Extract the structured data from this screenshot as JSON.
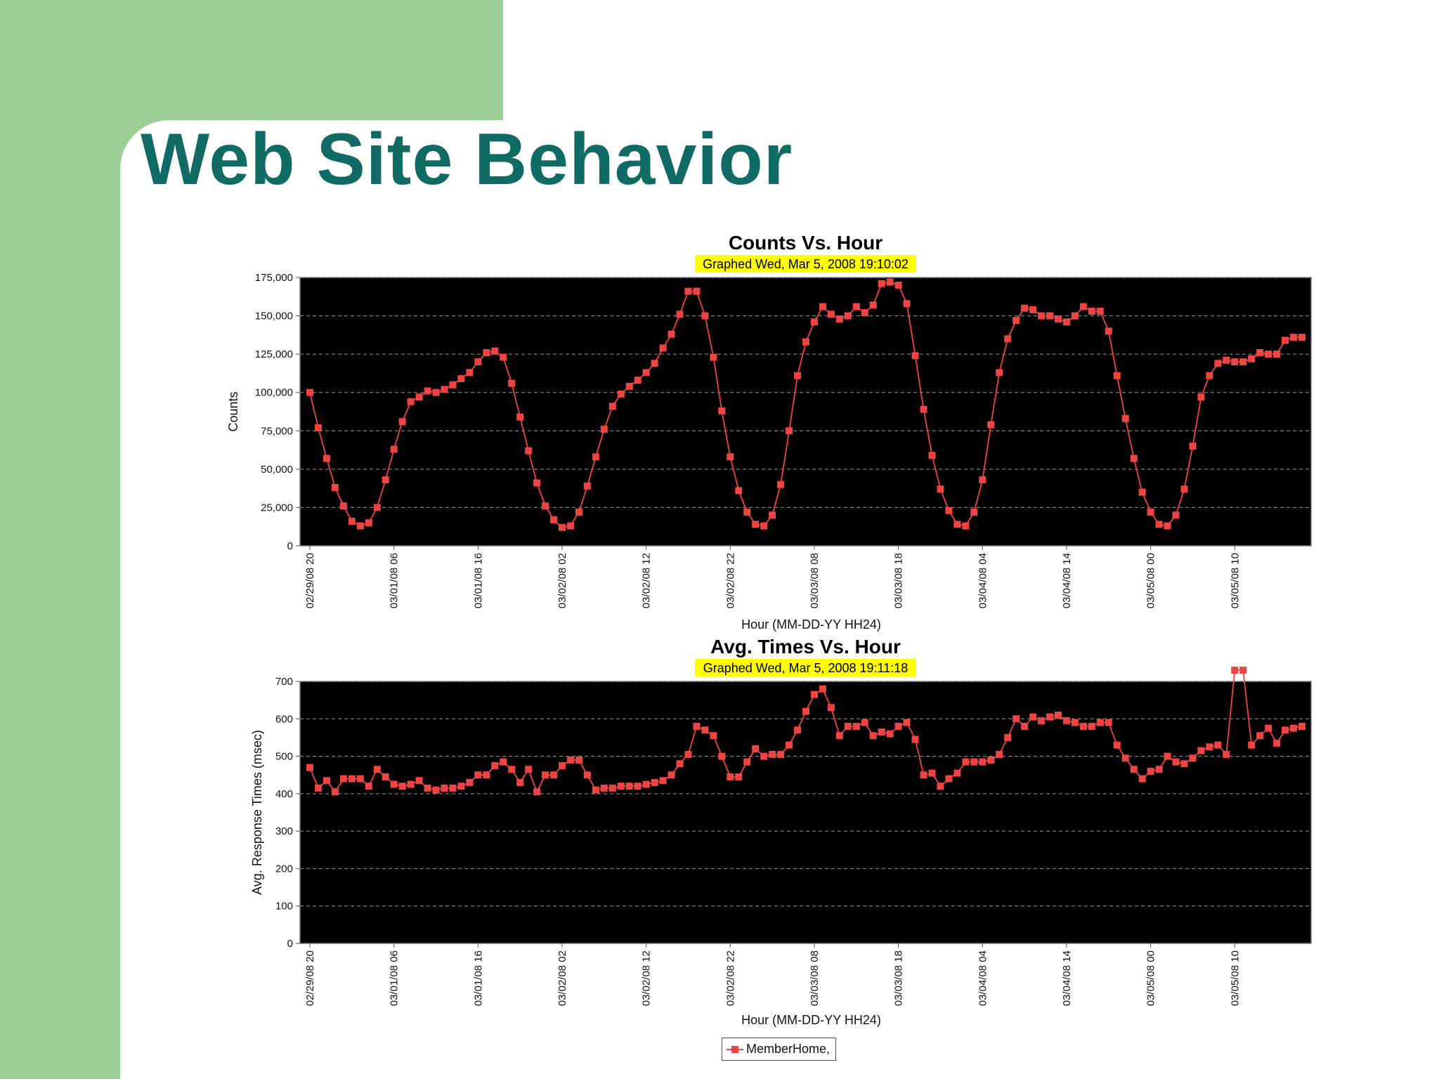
{
  "slide": {
    "title": "Web Site Behavior"
  },
  "legend": {
    "label": "MemberHome,"
  },
  "colors": {
    "series": "#ee4444",
    "plot_bg": "#000000",
    "highlight": "#ffff00",
    "title_teal": "#0f6b63",
    "side_green": "#9ccf98"
  },
  "chart_data": [
    {
      "type": "line",
      "title": "Counts Vs. Hour",
      "subtitle": "Graphed Wed, Mar 5, 2008 19:10:02",
      "xlabel": "Hour (MM-DD-YY HH24)",
      "ylabel": "Counts",
      "ylim": [
        0,
        175000
      ],
      "yticks": [
        0,
        25000,
        50000,
        75000,
        100000,
        125000,
        150000,
        175000
      ],
      "ytick_labels": [
        "0",
        "25,000",
        "50,000",
        "75,000",
        "100,000",
        "125,000",
        "150,000",
        "175,000"
      ],
      "xtick_labels": [
        "02/29/08 20",
        "03/01/08 06",
        "03/01/08 16",
        "03/02/08 02",
        "03/02/08 12",
        "03/02/08 22",
        "03/03/08 08",
        "03/03/08 18",
        "03/04/08 04",
        "03/04/08 14",
        "03/05/08 00",
        "03/05/08 10"
      ],
      "grid": true,
      "series": [
        {
          "name": "MemberHome,",
          "values": [
            100000,
            77000,
            57000,
            38000,
            26000,
            16000,
            13000,
            15000,
            25000,
            43000,
            63000,
            81000,
            94000,
            97000,
            101000,
            100000,
            102000,
            105000,
            109000,
            113000,
            120000,
            126000,
            127000,
            123000,
            106000,
            84000,
            62000,
            41000,
            26000,
            17000,
            12000,
            13000,
            22000,
            39000,
            58000,
            76000,
            91000,
            99000,
            104000,
            108000,
            113000,
            119000,
            129000,
            138000,
            151000,
            166000,
            166000,
            150000,
            123000,
            88000,
            58000,
            36000,
            22000,
            14000,
            13000,
            20000,
            40000,
            75000,
            111000,
            133000,
            146000,
            156000,
            151000,
            148000,
            150000,
            156000,
            152000,
            157000,
            171000,
            172000,
            170000,
            158000,
            124000,
            89000,
            59000,
            37000,
            23000,
            14000,
            13000,
            22000,
            43000,
            79000,
            113000,
            135000,
            147000,
            155000,
            154000,
            150000,
            150000,
            148000,
            146000,
            150000,
            156000,
            153000,
            153000,
            140000,
            111000,
            83000,
            57000,
            35000,
            22000,
            14000,
            13000,
            20000,
            37000,
            65000,
            97000,
            111000,
            119000,
            121000,
            120000,
            120000,
            122000,
            126000,
            125000,
            125000,
            134000,
            136000,
            136000
          ]
        }
      ]
    },
    {
      "type": "line",
      "title": "Avg. Times Vs. Hour",
      "subtitle": "Graphed Wed, Mar 5, 2008 19:11:18",
      "xlabel": "Hour (MM-DD-YY HH24)",
      "ylabel": "Avg. Response Times (msec)",
      "ylim": [
        0,
        700
      ],
      "yticks": [
        0,
        100,
        200,
        300,
        400,
        500,
        600,
        700
      ],
      "ytick_labels": [
        "0",
        "100",
        "200",
        "300",
        "400",
        "500",
        "600",
        "700"
      ],
      "xtick_labels": [
        "02/29/08 20",
        "03/01/08 06",
        "03/01/08 16",
        "03/02/08 02",
        "03/02/08 12",
        "03/02/08 22",
        "03/03/08 08",
        "03/03/08 18",
        "03/04/08 04",
        "03/04/08 14",
        "03/05/08 00",
        "03/05/08 10"
      ],
      "grid": true,
      "series": [
        {
          "name": "MemberHome,",
          "values": [
            470,
            415,
            435,
            405,
            440,
            440,
            440,
            420,
            465,
            445,
            425,
            420,
            425,
            435,
            415,
            410,
            415,
            415,
            420,
            430,
            450,
            450,
            475,
            485,
            465,
            430,
            465,
            405,
            450,
            450,
            475,
            490,
            490,
            450,
            410,
            415,
            415,
            420,
            420,
            420,
            425,
            430,
            435,
            450,
            480,
            505,
            580,
            570,
            555,
            500,
            445,
            445,
            485,
            520,
            500,
            505,
            505,
            530,
            570,
            620,
            665,
            680,
            630,
            555,
            580,
            580,
            590,
            555,
            565,
            560,
            580,
            590,
            545,
            450,
            455,
            420,
            440,
            455,
            485,
            485,
            485,
            490,
            505,
            550,
            600,
            580,
            605,
            595,
            605,
            610,
            595,
            590,
            580,
            580,
            590,
            590,
            530,
            495,
            465,
            440,
            460,
            465,
            500,
            485,
            480,
            495,
            515,
            525,
            530,
            505,
            730,
            730,
            530,
            555,
            575,
            535,
            570,
            575,
            580
          ]
        }
      ]
    }
  ]
}
